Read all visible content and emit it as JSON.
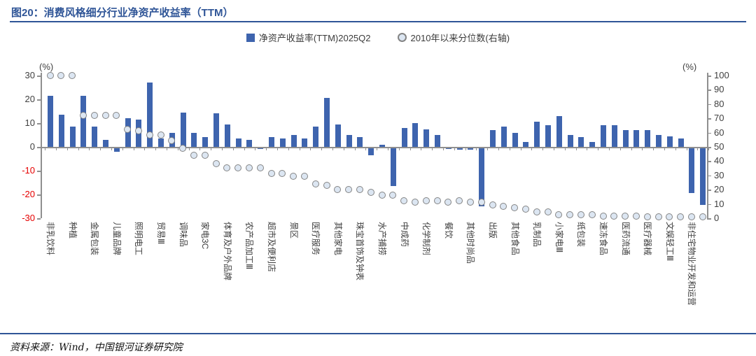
{
  "figure": {
    "title": "图20：消费风格细分行业净资产收益率（TTM）",
    "source": "资料来源：Wind，中国银河证券研究院"
  },
  "legend": {
    "bar_label": "净资产收益率(TTM)2025Q2",
    "dot_label": "2010年以来分位数(右轴)"
  },
  "colors": {
    "title_blue": "#2F5597",
    "bar_blue": "#3E64AE",
    "dot_fill": "#DCE6F2",
    "dot_border": "#848484",
    "negative_tick_red": "#e60000",
    "axis_gray": "#8f8f8f"
  },
  "chart_data": {
    "type": "bar",
    "title": "消费风格细分行业净资产收益率（TTM）",
    "left_axis": {
      "unit": "(%)",
      "ticks": [
        30,
        20,
        10,
        0,
        -10,
        -20,
        -30
      ],
      "range": [
        -30,
        30
      ]
    },
    "right_axis": {
      "unit": "(%)",
      "ticks": [
        100,
        90,
        80,
        70,
        60,
        50,
        40,
        30,
        20,
        10,
        0
      ],
      "range": [
        0,
        100
      ]
    },
    "series": [
      {
        "name": "净资产收益率(TTM)2025Q2",
        "type": "bar",
        "axis": "left"
      },
      {
        "name": "2010年以来分位数(右轴)",
        "type": "scatter",
        "axis": "right"
      }
    ],
    "legend_position": "top-center",
    "grid": false,
    "points": [
      {
        "label": "非乳饮料",
        "roe": 21.5,
        "pct": 100
      },
      {
        "label": "",
        "roe": 13.5,
        "pct": 100
      },
      {
        "label": "种植",
        "roe": 8.5,
        "pct": 100
      },
      {
        "label": "",
        "roe": 21.5,
        "pct": 72
      },
      {
        "label": "金属包装",
        "roe": 8.5,
        "pct": 72
      },
      {
        "label": "",
        "roe": 3.0,
        "pct": 72
      },
      {
        "label": "儿童品牌",
        "roe": -1.5,
        "pct": 72
      },
      {
        "label": "",
        "roe": 12.0,
        "pct": 62
      },
      {
        "label": "照明电工",
        "roe": 11.5,
        "pct": 61
      },
      {
        "label": "",
        "roe": 27.0,
        "pct": 58
      },
      {
        "label": "贸易Ⅲ",
        "roe": 3.5,
        "pct": 58
      },
      {
        "label": "",
        "roe": 6.0,
        "pct": 54
      },
      {
        "label": "调味品",
        "roe": 14.5,
        "pct": 49
      },
      {
        "label": "",
        "roe": 6.0,
        "pct": 44
      },
      {
        "label": "家电3C",
        "roe": 4.0,
        "pct": 44
      },
      {
        "label": "",
        "roe": 14.0,
        "pct": 38
      },
      {
        "label": "体育及户外品牌",
        "roe": 9.5,
        "pct": 35
      },
      {
        "label": "",
        "roe": 3.5,
        "pct": 35
      },
      {
        "label": "农产品加工Ⅲ",
        "roe": 3.0,
        "pct": 35
      },
      {
        "label": "",
        "roe": -0.5,
        "pct": 35
      },
      {
        "label": "超市及便利店",
        "roe": 4.0,
        "pct": 31
      },
      {
        "label": "",
        "roe": 3.5,
        "pct": 31
      },
      {
        "label": "景区",
        "roe": 5.0,
        "pct": 29
      },
      {
        "label": "",
        "roe": 3.5,
        "pct": 29
      },
      {
        "label": "医疗服务",
        "roe": 8.5,
        "pct": 24
      },
      {
        "label": "",
        "roe": 20.5,
        "pct": 23
      },
      {
        "label": "其他家电",
        "roe": 9.5,
        "pct": 20
      },
      {
        "label": "",
        "roe": 5.0,
        "pct": 20
      },
      {
        "label": "珠宝首饰及钟表",
        "roe": 4.0,
        "pct": 20
      },
      {
        "label": "",
        "roe": -3.0,
        "pct": 18
      },
      {
        "label": "水产捕捞",
        "roe": 1.0,
        "pct": 16
      },
      {
        "label": "",
        "roe": -16.0,
        "pct": 16
      },
      {
        "label": "中成药",
        "roe": 8.0,
        "pct": 12
      },
      {
        "label": "",
        "roe": 10.0,
        "pct": 11
      },
      {
        "label": "化学制剂",
        "roe": 7.5,
        "pct": 12
      },
      {
        "label": "",
        "roe": 5.0,
        "pct": 12
      },
      {
        "label": "餐饮",
        "roe": -0.5,
        "pct": 11
      },
      {
        "label": "",
        "roe": -0.7,
        "pct": 12
      },
      {
        "label": "其他时尚品",
        "roe": -0.8,
        "pct": 11
      },
      {
        "label": "",
        "roe": -24.5,
        "pct": 11
      },
      {
        "label": "出版",
        "roe": 7.0,
        "pct": 9
      },
      {
        "label": "",
        "roe": 8.5,
        "pct": 8
      },
      {
        "label": "其他食品",
        "roe": 6.0,
        "pct": 7
      },
      {
        "label": "",
        "roe": 2.0,
        "pct": 6
      },
      {
        "label": "乳制品",
        "roe": 10.5,
        "pct": 4
      },
      {
        "label": "",
        "roe": 9.0,
        "pct": 4
      },
      {
        "label": "小家电Ⅲ",
        "roe": 13.0,
        "pct": 2
      },
      {
        "label": "",
        "roe": 5.0,
        "pct": 2
      },
      {
        "label": "纸包装",
        "roe": 4.0,
        "pct": 2
      },
      {
        "label": "",
        "roe": 2.0,
        "pct": 2
      },
      {
        "label": "速冻食品",
        "roe": 9.0,
        "pct": 1
      },
      {
        "label": "",
        "roe": 9.0,
        "pct": 1
      },
      {
        "label": "医药流通",
        "roe": 7.0,
        "pct": 1
      },
      {
        "label": "",
        "roe": 7.0,
        "pct": 1
      },
      {
        "label": "医疗器械",
        "roe": 7.0,
        "pct": 0.5
      },
      {
        "label": "",
        "roe": 5.0,
        "pct": 0.5
      },
      {
        "label": "文娱轻工Ⅲ",
        "roe": 4.5,
        "pct": 0.5
      },
      {
        "label": "",
        "roe": 3.5,
        "pct": 0.5
      },
      {
        "label": "非住宅物业开发和运营",
        "roe": -19.0,
        "pct": 0.5
      },
      {
        "label": "",
        "roe": -24.0,
        "pct": 0.5
      }
    ]
  }
}
